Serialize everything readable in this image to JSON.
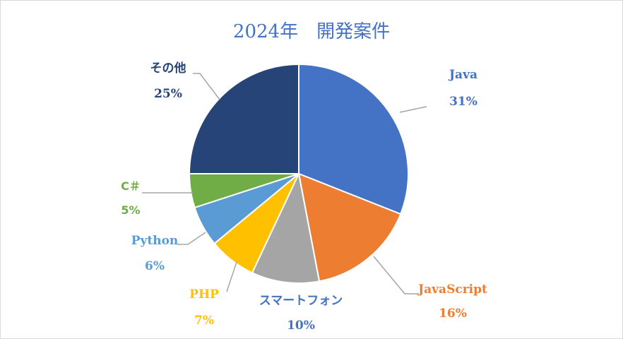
{
  "chart_data": {
    "type": "pie",
    "title": "2024年　開発案件",
    "slices": [
      {
        "label": "Java",
        "value": 31,
        "pct_label": "31%",
        "color": "#4472C4",
        "label_color": "#4472C4"
      },
      {
        "label": "JavaScript",
        "value": 16,
        "pct_label": "16%",
        "color": "#ED7D31",
        "label_color": "#ED7D31"
      },
      {
        "label": "スマートフォン",
        "value": 10,
        "pct_label": "10%",
        "color": "#A5A5A5",
        "label_color": "#4472C4"
      },
      {
        "label": "PHP",
        "value": 7,
        "pct_label": "7%",
        "color": "#FFC000",
        "label_color": "#FFC000"
      },
      {
        "label": "Python",
        "value": 6,
        "pct_label": "6%",
        "color": "#5B9BD5",
        "label_color": "#5B9BD5"
      },
      {
        "label": "C＃",
        "value": 5,
        "pct_label": "5%",
        "color": "#70AD47",
        "label_color": "#70AD47"
      },
      {
        "label": "その他",
        "value": 25,
        "pct_label": "25%",
        "color": "#264478",
        "label_color": "#264478"
      }
    ],
    "title_color": "#4472C4",
    "leader_line_color": "#A5A5A5"
  }
}
